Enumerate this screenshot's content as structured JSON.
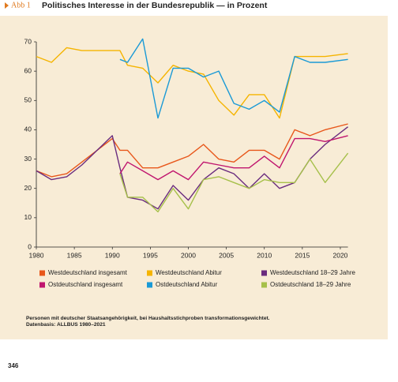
{
  "chart_data": {
    "type": "line",
    "figure_label": "Abb 1",
    "title": "Politisches Interesse in der Bundesrepublik — in Prozent",
    "x": [
      1980,
      1982,
      1984,
      1986,
      1988,
      1990,
      1991,
      1992,
      1994,
      1996,
      1998,
      2000,
      2002,
      2004,
      2006,
      2008,
      2010,
      2012,
      2014,
      2016,
      2018,
      2021
    ],
    "series": [
      {
        "name": "Westdeutschland insgesamt",
        "color": "#e8571b",
        "values": [
          26,
          24,
          25,
          29,
          33,
          37,
          33,
          33,
          27,
          27,
          29,
          31,
          35,
          30,
          29,
          33,
          33,
          30,
          40,
          38,
          40,
          42
        ]
      },
      {
        "name": "Westdeutschland Abitur",
        "color": "#f5b400",
        "values": [
          65,
          63,
          68,
          67,
          67,
          67,
          67,
          62,
          61,
          56,
          62,
          60,
          59,
          50,
          45,
          52,
          52,
          44,
          65,
          65,
          65,
          66
        ]
      },
      {
        "name": "Westdeutschland 18–29 Jahre",
        "color": "#6a2c7e",
        "values": [
          26,
          23,
          24,
          28,
          33,
          38,
          27,
          17,
          16,
          13,
          21,
          16,
          23,
          27,
          25,
          20,
          25,
          20,
          22,
          30,
          35,
          41
        ]
      },
      {
        "name": "Ostdeutschland insgesamt",
        "color": "#c0156e",
        "values": [
          null,
          null,
          null,
          null,
          null,
          null,
          25,
          29,
          26,
          23,
          26,
          23,
          29,
          28,
          27,
          27,
          31,
          27,
          37,
          37,
          36,
          38
        ]
      },
      {
        "name": "Ostdeutschland Abitur",
        "color": "#1a9ad6",
        "values": [
          null,
          null,
          null,
          null,
          null,
          null,
          64,
          63,
          71,
          44,
          61,
          61,
          58,
          60,
          49,
          47,
          50,
          46,
          65,
          63,
          63,
          64
        ]
      },
      {
        "name": "Ostdeutschland 18–29 Jahre",
        "color": "#a6c04a",
        "values": [
          null,
          null,
          null,
          null,
          null,
          null,
          25,
          17,
          17,
          12,
          20,
          13,
          23,
          24,
          22,
          20,
          23,
          22,
          22,
          30,
          22,
          32
        ]
      }
    ],
    "xlim": [
      1980,
      2021
    ],
    "xticks": [
      1980,
      1985,
      1990,
      1995,
      2000,
      2005,
      2010,
      2015,
      2020
    ],
    "ylim": [
      0,
      70
    ],
    "yticks": [
      0,
      10,
      20,
      30,
      40,
      50,
      60,
      70
    ],
    "grid": false,
    "note": "Personen mit deutscher Staatsangehörigkeit, bei Haushaltsstichproben transformationsgewichtet.",
    "source": "Datenbasis: ALLBUS 1980–2021"
  },
  "page_number": "346"
}
